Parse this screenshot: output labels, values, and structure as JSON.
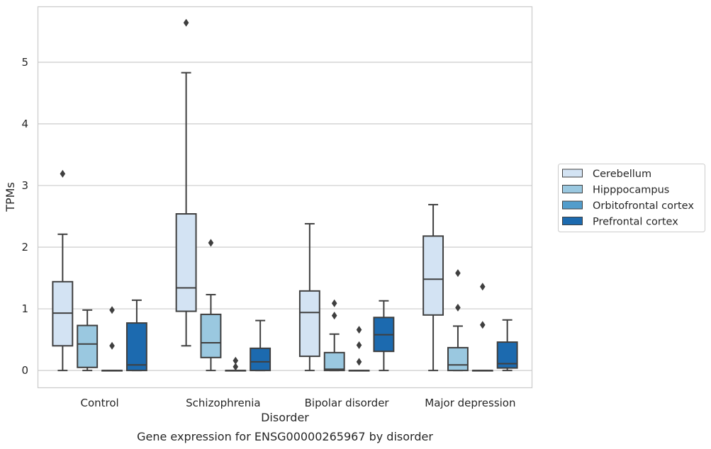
{
  "chart_data": {
    "type": "box",
    "title": "Gene expression for ENSG00000265967 by disorder",
    "xlabel": "Disorder",
    "ylabel": "TPMs",
    "ylim": [
      -0.28,
      5.9
    ],
    "yticks": [
      0,
      1,
      2,
      3,
      4,
      5
    ],
    "grid": "horizontal",
    "legend_position": "right",
    "categories": [
      "Control",
      "Schizophrenia",
      "Bipolar disorder",
      "Major depression"
    ],
    "series": [
      {
        "name": "Cerebellum",
        "color": "#d3e3f3",
        "boxes": [
          {
            "whislo": 0.0,
            "q1": 0.4,
            "med": 0.93,
            "q3": 1.44,
            "whishi": 2.21,
            "fliers": [
              3.19
            ]
          },
          {
            "whislo": 0.4,
            "q1": 0.96,
            "med": 1.34,
            "q3": 2.54,
            "whishi": 4.83,
            "fliers": [
              5.64
            ]
          },
          {
            "whislo": 0.0,
            "q1": 0.23,
            "med": 0.94,
            "q3": 1.29,
            "whishi": 2.38,
            "fliers": []
          },
          {
            "whislo": 0.0,
            "q1": 0.9,
            "med": 1.48,
            "q3": 2.18,
            "whishi": 2.69,
            "fliers": []
          }
        ]
      },
      {
        "name": "Hipppocampus",
        "color": "#9ac8e0",
        "boxes": [
          {
            "whislo": 0.0,
            "q1": 0.05,
            "med": 0.43,
            "q3": 0.73,
            "whishi": 0.98,
            "fliers": []
          },
          {
            "whislo": 0.0,
            "q1": 0.21,
            "med": 0.45,
            "q3": 0.91,
            "whishi": 1.23,
            "fliers": [
              2.07
            ]
          },
          {
            "whislo": 0.0,
            "q1": 0.0,
            "med": 0.02,
            "q3": 0.29,
            "whishi": 0.59,
            "fliers": [
              0.89,
              1.09
            ]
          },
          {
            "whislo": 0.0,
            "q1": 0.0,
            "med": 0.09,
            "q3": 0.37,
            "whishi": 0.72,
            "fliers": [
              1.02,
              1.58
            ]
          }
        ]
      },
      {
        "name": "Orbitofrontal cortex",
        "color": "#529dcc",
        "boxes": [
          {
            "whislo": 0.0,
            "q1": 0.0,
            "med": 0.0,
            "q3": 0.0,
            "whishi": 0.0,
            "fliers": [
              0.4,
              0.98
            ]
          },
          {
            "whislo": 0.0,
            "q1": 0.0,
            "med": 0.0,
            "q3": 0.0,
            "whishi": 0.0,
            "fliers": [
              0.06,
              0.16
            ]
          },
          {
            "whislo": 0.0,
            "q1": 0.0,
            "med": 0.0,
            "q3": 0.0,
            "whishi": 0.0,
            "fliers": [
              0.14,
              0.41,
              0.66
            ]
          },
          {
            "whislo": 0.0,
            "q1": 0.0,
            "med": 0.0,
            "q3": 0.0,
            "whishi": 0.0,
            "fliers": [
              0.74,
              1.36
            ]
          }
        ]
      },
      {
        "name": "Prefrontal cortex",
        "color": "#1c6aaf",
        "boxes": [
          {
            "whislo": 0.0,
            "q1": 0.0,
            "med": 0.09,
            "q3": 0.77,
            "whishi": 1.14,
            "fliers": []
          },
          {
            "whislo": 0.0,
            "q1": 0.0,
            "med": 0.14,
            "q3": 0.36,
            "whishi": 0.81,
            "fliers": []
          },
          {
            "whislo": 0.0,
            "q1": 0.31,
            "med": 0.58,
            "q3": 0.86,
            "whishi": 1.13,
            "fliers": []
          },
          {
            "whislo": 0.0,
            "q1": 0.04,
            "med": 0.11,
            "q3": 0.46,
            "whishi": 0.82,
            "fliers": []
          }
        ]
      }
    ]
  }
}
